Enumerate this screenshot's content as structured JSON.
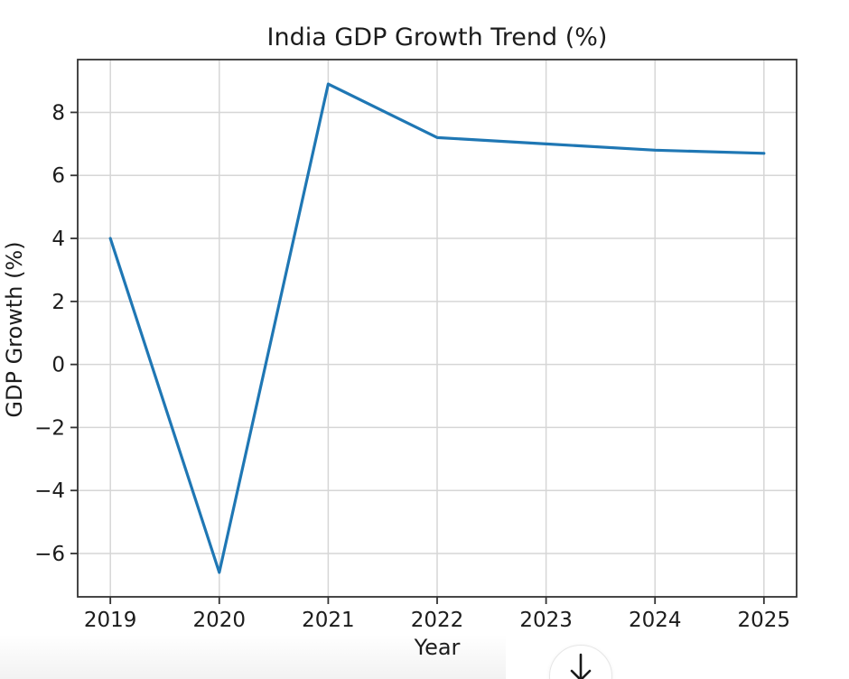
{
  "page": {
    "background": "#ffffff"
  },
  "chart_data": {
    "type": "line",
    "title": "India GDP Growth Trend (%)",
    "xlabel": "Year",
    "ylabel": "GDP Growth (%)",
    "x": [
      2019,
      2020,
      2021,
      2022,
      2023,
      2024,
      2025
    ],
    "series": [
      {
        "name": "GDP Growth (%)",
        "values": [
          4.0,
          -6.6,
          8.9,
          7.2,
          7.0,
          6.8,
          6.7
        ]
      }
    ],
    "xticks": [
      2019,
      2020,
      2021,
      2022,
      2023,
      2024,
      2025
    ],
    "yticks": [
      -6,
      -4,
      -2,
      0,
      2,
      4,
      6,
      8
    ],
    "xlim": [
      2018.7,
      2025.3
    ],
    "ylim": [
      -7.375,
      9.675
    ],
    "grid": true,
    "legend_position": "none",
    "line_color": "#1f77b4",
    "grid_color": "#d6d6d6",
    "axis_color": "#333333",
    "text_color": "#1c1c1c",
    "plot_background": "#ffffff"
  },
  "scroll_button": {
    "icon": "scroll-down-arrow"
  }
}
